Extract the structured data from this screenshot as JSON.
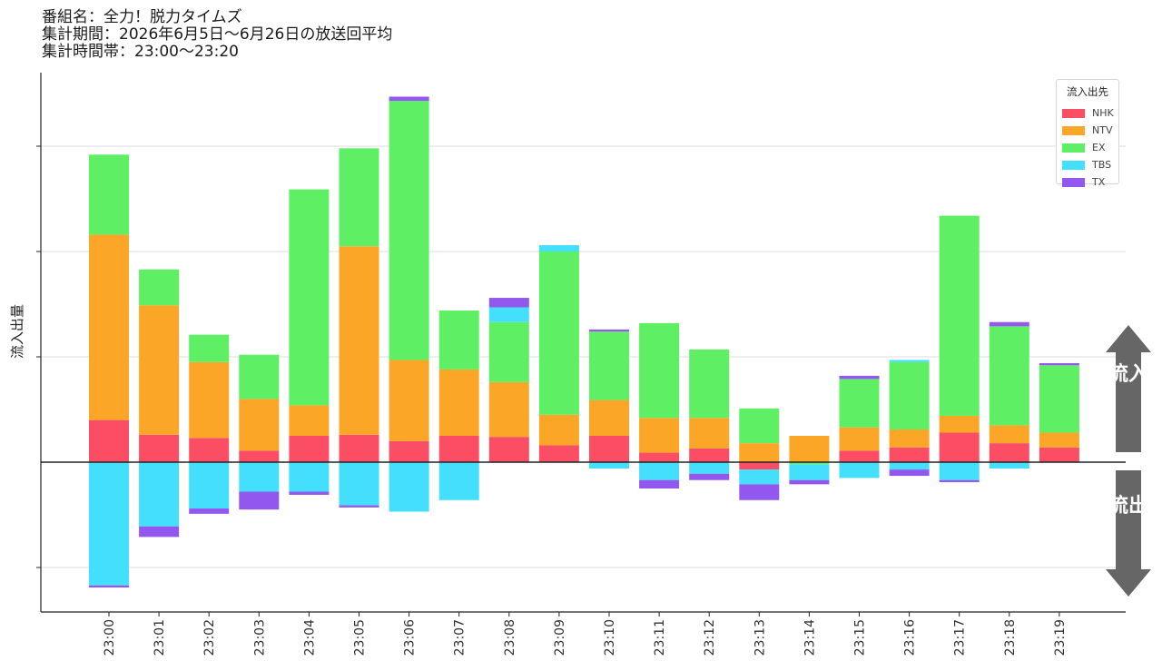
{
  "header": {
    "line1": "番組名：全力！脱力タイムズ",
    "line2": "集計期間：2026年6月5日〜6月26日の放送回平均",
    "line3": "集計時間帯：23:00〜23:20"
  },
  "flow_labels": {
    "inflow": "流入",
    "outflow": "流出"
  },
  "colors": {
    "NHK": "#fb4d63",
    "NTV": "#fba627",
    "EX": "#5eef65",
    "TBS": "#43dffc",
    "TX": "#9257ee"
  },
  "chart_data": {
    "type": "bar",
    "stacked": true,
    "ylabel": "流入出量",
    "ylim": [
      -14,
      37
    ],
    "ytick_labels_shown": false,
    "grid": true,
    "legend": {
      "title": "流入出先",
      "placement": "top-right"
    },
    "categories": [
      "23:00",
      "23:01",
      "23:02",
      "23:03",
      "23:04",
      "23:05",
      "23:06",
      "23:07",
      "23:08",
      "23:09",
      "23:10",
      "23:11",
      "23:12",
      "23:13",
      "23:14",
      "23:15",
      "23:16",
      "23:17",
      "23:18",
      "23:19"
    ],
    "inflow_series": [
      {
        "name": "NHK",
        "values": [
          4.0,
          2.6,
          2.3,
          1.1,
          2.5,
          2.6,
          2.0,
          2.5,
          2.4,
          1.6,
          2.5,
          0.9,
          1.3,
          0.0,
          0.0,
          1.1,
          1.4,
          2.8,
          1.8,
          1.4
        ]
      },
      {
        "name": "NTV",
        "values": [
          17.6,
          12.3,
          7.2,
          4.9,
          2.9,
          17.9,
          7.7,
          6.3,
          5.2,
          2.9,
          3.4,
          3.3,
          2.9,
          1.8,
          2.5,
          2.2,
          1.7,
          1.6,
          1.7,
          1.4
        ]
      },
      {
        "name": "EX",
        "values": [
          7.6,
          3.4,
          2.6,
          4.2,
          20.5,
          9.3,
          24.6,
          5.6,
          5.7,
          15.5,
          6.5,
          9.0,
          6.5,
          3.3,
          0.0,
          4.6,
          6.4,
          19.0,
          9.4,
          6.4
        ]
      },
      {
        "name": "TBS",
        "values": [
          0.0,
          0.0,
          0.0,
          0.0,
          0.0,
          0.0,
          0.0,
          0.0,
          1.4,
          0.6,
          0.0,
          0.0,
          0.0,
          0.0,
          0.0,
          0.0,
          0.2,
          0.0,
          0.0,
          0.0
        ]
      },
      {
        "name": "TX",
        "values": [
          0.0,
          0.0,
          0.0,
          0.0,
          0.0,
          0.0,
          0.4,
          0.0,
          0.9,
          0.0,
          0.2,
          0.0,
          0.0,
          0.0,
          0.0,
          0.3,
          0.0,
          0.0,
          0.4,
          0.2
        ]
      }
    ],
    "outflow_series": [
      {
        "name": "NHK",
        "values": [
          0.0,
          0.0,
          0.0,
          0.0,
          0.0,
          0.0,
          0.0,
          0.0,
          0.0,
          0.0,
          0.0,
          0.0,
          0.0,
          -0.7,
          0.0,
          0.0,
          0.0,
          0.0,
          0.0,
          0.0
        ]
      },
      {
        "name": "NTV",
        "values": [
          0.0,
          0.0,
          0.0,
          0.0,
          0.0,
          0.0,
          0.0,
          0.0,
          0.0,
          0.0,
          0.0,
          0.0,
          0.0,
          0.0,
          0.0,
          0.0,
          0.0,
          0.0,
          0.0,
          0.0
        ]
      },
      {
        "name": "EX",
        "values": [
          0.0,
          0.0,
          0.0,
          0.0,
          0.0,
          0.0,
          0.0,
          0.0,
          0.0,
          0.0,
          0.0,
          0.0,
          0.0,
          0.0,
          -0.2,
          0.0,
          0.0,
          0.0,
          0.0,
          0.0
        ]
      },
      {
        "name": "TBS",
        "values": [
          -11.7,
          -6.1,
          -4.4,
          -2.8,
          -2.8,
          -4.1,
          -4.7,
          -3.6,
          0.0,
          0.0,
          -0.6,
          -1.7,
          -1.1,
          -1.4,
          -1.5,
          -1.5,
          -0.7,
          -1.7,
          -0.6,
          0.0
        ]
      },
      {
        "name": "TX",
        "values": [
          -0.2,
          -1.0,
          -0.5,
          -1.7,
          -0.3,
          -0.2,
          0.0,
          0.0,
          0.0,
          0.0,
          0.0,
          -0.8,
          -0.6,
          -1.5,
          -0.4,
          0.0,
          -0.6,
          -0.2,
          0.0,
          0.0
        ]
      }
    ]
  }
}
